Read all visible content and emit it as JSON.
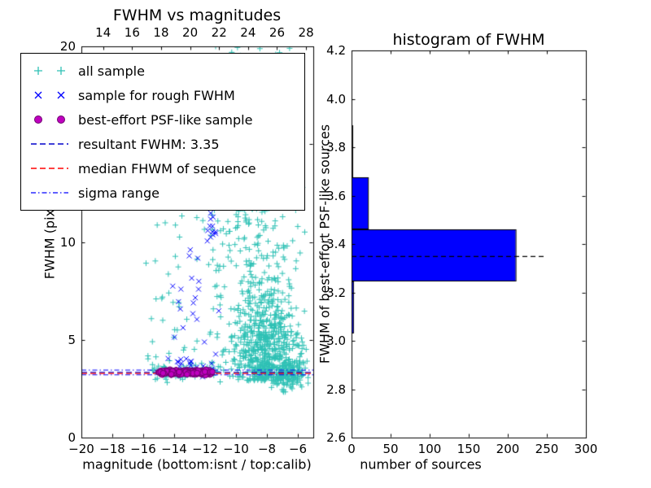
{
  "chart_data": [
    {
      "type": "scatter",
      "title": "FWHM vs magnitudes",
      "xlabel": "magnitude (bottom:isnt / top:calib)",
      "ylabel": "FWHM (pix)",
      "x_range": [
        -20,
        -5
      ],
      "y_range": [
        0,
        20
      ],
      "top_axis_range": [
        12.5,
        28.5
      ],
      "x_ticks": [
        {
          "v": -20,
          "label": "−20"
        },
        {
          "v": -18,
          "label": "−18"
        },
        {
          "v": -16,
          "label": "−16"
        },
        {
          "v": -14,
          "label": "−14"
        },
        {
          "v": -12,
          "label": "−12"
        },
        {
          "v": -10,
          "label": "−10"
        },
        {
          "v": -8,
          "label": "−8"
        },
        {
          "v": -6,
          "label": "−6"
        }
      ],
      "top_ticks": [
        {
          "v": 14,
          "label": "14"
        },
        {
          "v": 16,
          "label": "16"
        },
        {
          "v": 18,
          "label": "18"
        },
        {
          "v": 20,
          "label": "20"
        },
        {
          "v": 22,
          "label": "22"
        },
        {
          "v": 24,
          "label": "24"
        },
        {
          "v": 26,
          "label": "26"
        },
        {
          "v": 28,
          "label": "28"
        }
      ],
      "y_ticks": [
        {
          "v": 0,
          "label": "0"
        },
        {
          "v": 5,
          "label": "5"
        },
        {
          "v": 10,
          "label": "10"
        },
        {
          "v": 15,
          "label": "15"
        },
        {
          "v": 20,
          "label": "20"
        }
      ],
      "grid": false,
      "hlines": [
        {
          "name": "resultant FWHM",
          "y": 3.35,
          "color": "#0000cc",
          "dash": [
            7,
            4
          ],
          "width": 1.3
        },
        {
          "name": "median FHWM of sequence",
          "y": 3.3,
          "color": "#ff0000",
          "dash": [
            7,
            4
          ],
          "width": 1.3
        },
        {
          "name": "sigma range upper",
          "y": 3.47,
          "color": "#0000ff",
          "dash": [
            6,
            3,
            1.5,
            3
          ],
          "width": 1
        },
        {
          "name": "sigma range lower",
          "y": 3.23,
          "color": "#0000ff",
          "dash": [
            6,
            3,
            1.5,
            3
          ],
          "width": 1
        }
      ],
      "seed": 12345,
      "series": [
        {
          "name": "all sample",
          "marker": "plus",
          "color": "#2fc1b5",
          "clusters": [
            {
              "n": 600,
              "x": [
                "normal",
                -8.1,
                1.1
              ],
              "y": [
                "absnormal",
                2.9,
                2.3
              ],
              "xclip": [
                -11.2,
                -5.3
              ],
              "yclip": [
                2.2,
                20
              ]
            },
            {
              "n": 300,
              "x": [
                "normal",
                -8.6,
                1.4
              ],
              "y": [
                "uniform",
                5,
                15
              ],
              "xclip": [
                -12.5,
                -5.5
              ]
            },
            {
              "n": 170,
              "x": [
                "normal",
                -8.8,
                1.6
              ],
              "y": [
                "uniform",
                13,
                20
              ],
              "xclip": [
                -13.2,
                -6
              ]
            },
            {
              "n": 130,
              "x": [
                "uniform",
                -16.3,
                -10.8
              ],
              "y": [
                "uniform",
                2.5,
                19.5
              ]
            },
            {
              "n": 60,
              "x": [
                "uniform",
                -15.5,
                -11
              ],
              "y": [
                "normal",
                3.4,
                0.2
              ]
            },
            {
              "n": 120,
              "x": [
                "normal",
                -6.5,
                0.6
              ],
              "y": [
                "normal",
                3.2,
                0.45
              ],
              "xclip": [
                -8,
                -5.2
              ],
              "yclip": [
                2.2,
                4.6
              ]
            }
          ]
        },
        {
          "name": "sample for rough FWHM",
          "marker": "x",
          "color": "#0000ff",
          "clusters": [
            {
              "n": 26,
              "x": [
                "uniform",
                -14.6,
                -11.2
              ],
              "y": [
                "normal",
                3.6,
                0.35
              ]
            },
            {
              "n": 16,
              "x": [
                "uniform",
                -14.3,
                -11.1
              ],
              "y": [
                "uniform",
                4.2,
                8.2
              ]
            },
            {
              "n": 12,
              "x": [
                "normal",
                -11.55,
                0.2
              ],
              "y": [
                "uniform",
                9.8,
                11.7
              ]
            },
            {
              "n": 3,
              "x": [
                "uniform",
                -13.2,
                -12.3
              ],
              "y": [
                "uniform",
                8.8,
                9.6
              ]
            }
          ]
        },
        {
          "name": "best-effort PSF-like sample",
          "marker": "circle",
          "color": "#bf00bf",
          "edge": "#6e006e",
          "clusters": [
            {
              "n": 210,
              "x": [
                "uniform",
                -15.05,
                -11.5
              ],
              "y": [
                "normal",
                3.33,
                0.06
              ],
              "yclip": [
                3.18,
                3.5
              ]
            }
          ]
        }
      ]
    },
    {
      "type": "bar",
      "orientation": "horizontal",
      "title": "histogram of FWHM",
      "xlabel": "number of sources",
      "ylabel": "FWHM of best-effort PSF-like sources",
      "x_range": [
        0,
        300
      ],
      "y_range": [
        2.6,
        4.2
      ],
      "x_ticks": [
        {
          "v": 0,
          "label": "0"
        },
        {
          "v": 50,
          "label": "50"
        },
        {
          "v": 100,
          "label": "100"
        },
        {
          "v": 150,
          "label": "150"
        },
        {
          "v": 200,
          "label": "200"
        },
        {
          "v": 250,
          "label": "250"
        },
        {
          "v": 300,
          "label": "300"
        }
      ],
      "y_ticks": [
        {
          "v": 2.6,
          "label": "2.6"
        },
        {
          "v": 2.8,
          "label": "2.8"
        },
        {
          "v": 3.0,
          "label": "3.0"
        },
        {
          "v": 3.2,
          "label": "3.2"
        },
        {
          "v": 3.4,
          "label": "3.4"
        },
        {
          "v": 3.6,
          "label": "3.6"
        },
        {
          "v": 3.8,
          "label": "3.8"
        },
        {
          "v": 4.0,
          "label": "4.0"
        },
        {
          "v": 4.2,
          "label": "4.2"
        }
      ],
      "bar_color": "#0000ff",
      "bar_edge": "#000000",
      "bins": [
        {
          "from": 3.03,
          "to": 3.245,
          "count": 2
        },
        {
          "from": 3.245,
          "to": 3.46,
          "count": 210
        },
        {
          "from": 3.46,
          "to": 3.675,
          "count": 21
        },
        {
          "from": 3.675,
          "to": 3.89,
          "count": 1
        }
      ],
      "dashed_line": {
        "y": 3.35,
        "x_from": 0,
        "x_to": 250,
        "color": "#000000",
        "dash": [
          6,
          4
        ]
      }
    }
  ],
  "legend": {
    "entries": [
      {
        "type": "plus2",
        "color": "#2fc1b5",
        "label": "all sample"
      },
      {
        "type": "x2",
        "color": "#0000ff",
        "label": "sample for rough FWHM"
      },
      {
        "type": "circle2",
        "color": "#bf00bf",
        "edge": "#6e006e",
        "label": "best-effort PSF-like sample"
      },
      {
        "type": "dash",
        "color": "#0000cc",
        "label": "resultant FWHM: 3.35"
      },
      {
        "type": "dash",
        "color": "#ff0000",
        "label": "median FHWM of sequence"
      },
      {
        "type": "dashdot",
        "color": "#0000ff",
        "label": "sigma range"
      }
    ]
  }
}
